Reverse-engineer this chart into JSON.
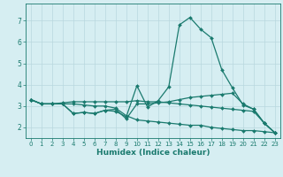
{
  "xlabel": "Humidex (Indice chaleur)",
  "background_color": "#d6eef2",
  "grid_color": "#b8d8de",
  "line_color": "#1a7a6e",
  "xlim": [
    -0.5,
    23.5
  ],
  "ylim": [
    1.5,
    7.8
  ],
  "yticks": [
    2,
    3,
    4,
    5,
    6,
    7
  ],
  "xticks": [
    0,
    1,
    2,
    3,
    4,
    5,
    6,
    7,
    8,
    9,
    10,
    11,
    12,
    13,
    14,
    15,
    16,
    17,
    18,
    19,
    20,
    21,
    22,
    23
  ],
  "lines": [
    {
      "x": [
        0,
        1,
        2,
        3,
        4,
        5,
        6,
        7,
        8,
        9,
        10,
        11,
        12,
        13,
        14,
        15,
        16,
        17,
        18,
        19,
        20,
        21,
        22,
        23
      ],
      "y": [
        3.3,
        3.1,
        3.1,
        3.1,
        2.65,
        2.7,
        2.65,
        2.8,
        2.75,
        2.5,
        3.95,
        2.95,
        3.25,
        3.9,
        6.8,
        7.15,
        6.6,
        6.2,
        4.7,
        3.85,
        3.05,
        2.85,
        2.2,
        1.75
      ]
    },
    {
      "x": [
        0,
        1,
        2,
        3,
        4,
        5,
        6,
        7,
        8,
        9,
        10,
        11,
        12,
        13,
        14,
        15,
        16,
        17,
        18,
        19,
        20,
        21,
        22,
        23
      ],
      "y": [
        3.3,
        3.1,
        3.1,
        3.1,
        2.65,
        2.7,
        2.65,
        2.8,
        2.85,
        2.4,
        3.1,
        3.1,
        3.15,
        3.2,
        3.3,
        3.4,
        3.45,
        3.5,
        3.55,
        3.6,
        3.1,
        2.85,
        2.2,
        1.75
      ]
    },
    {
      "x": [
        0,
        1,
        2,
        3,
        4,
        5,
        6,
        7,
        8,
        9,
        10,
        11,
        12,
        13,
        14,
        15,
        16,
        17,
        18,
        19,
        20,
        21,
        22,
        23
      ],
      "y": [
        3.3,
        3.1,
        3.1,
        3.15,
        3.2,
        3.2,
        3.2,
        3.2,
        3.2,
        3.2,
        3.25,
        3.2,
        3.2,
        3.15,
        3.1,
        3.05,
        3.0,
        2.95,
        2.9,
        2.85,
        2.8,
        2.75,
        2.2,
        1.75
      ]
    },
    {
      "x": [
        0,
        1,
        2,
        3,
        4,
        5,
        6,
        7,
        8,
        9,
        10,
        11,
        12,
        13,
        14,
        15,
        16,
        17,
        18,
        19,
        20,
        21,
        22,
        23
      ],
      "y": [
        3.3,
        3.1,
        3.1,
        3.1,
        3.1,
        3.05,
        3.0,
        3.0,
        2.9,
        2.55,
        2.35,
        2.3,
        2.25,
        2.2,
        2.15,
        2.1,
        2.1,
        2.0,
        1.95,
        1.9,
        1.85,
        1.85,
        1.8,
        1.75
      ]
    }
  ]
}
